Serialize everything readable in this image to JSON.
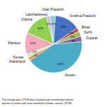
{
  "chart_data": {
    "type": "pie",
    "categories": [
      "Uttar Pradesh",
      "Andhra Pradesh",
      "Bihar",
      "Delhi",
      "Gujarat",
      "Assam",
      "Jharkhand",
      "Kerala",
      "Manipur",
      "Odisha",
      "Lakshadweep"
    ],
    "values": [
      3,
      14,
      2,
      3,
      3,
      41,
      2,
      2,
      12,
      14,
      2
    ],
    "value_labels": [
      "3%",
      "14%",
      "2%",
      "3%",
      "3%",
      "41%",
      "2%",
      "2%",
      "12%",
      "14%",
      "2%"
    ],
    "colors": [
      "#92CDDC",
      "#4472C4",
      "#C0504D",
      "#9BBB59",
      "#8064A2",
      "#4BACC6",
      "#F79646",
      "#C6EFCE",
      "#F2ABBA",
      "#92D050",
      "#CCC0DA"
    ],
    "data_labels": true,
    "annotations": [
      "Percentage wise CPCB data of pond water monitoring stations",
      "present in states and union territories of India; source: CPCB⁹"
    ]
  }
}
